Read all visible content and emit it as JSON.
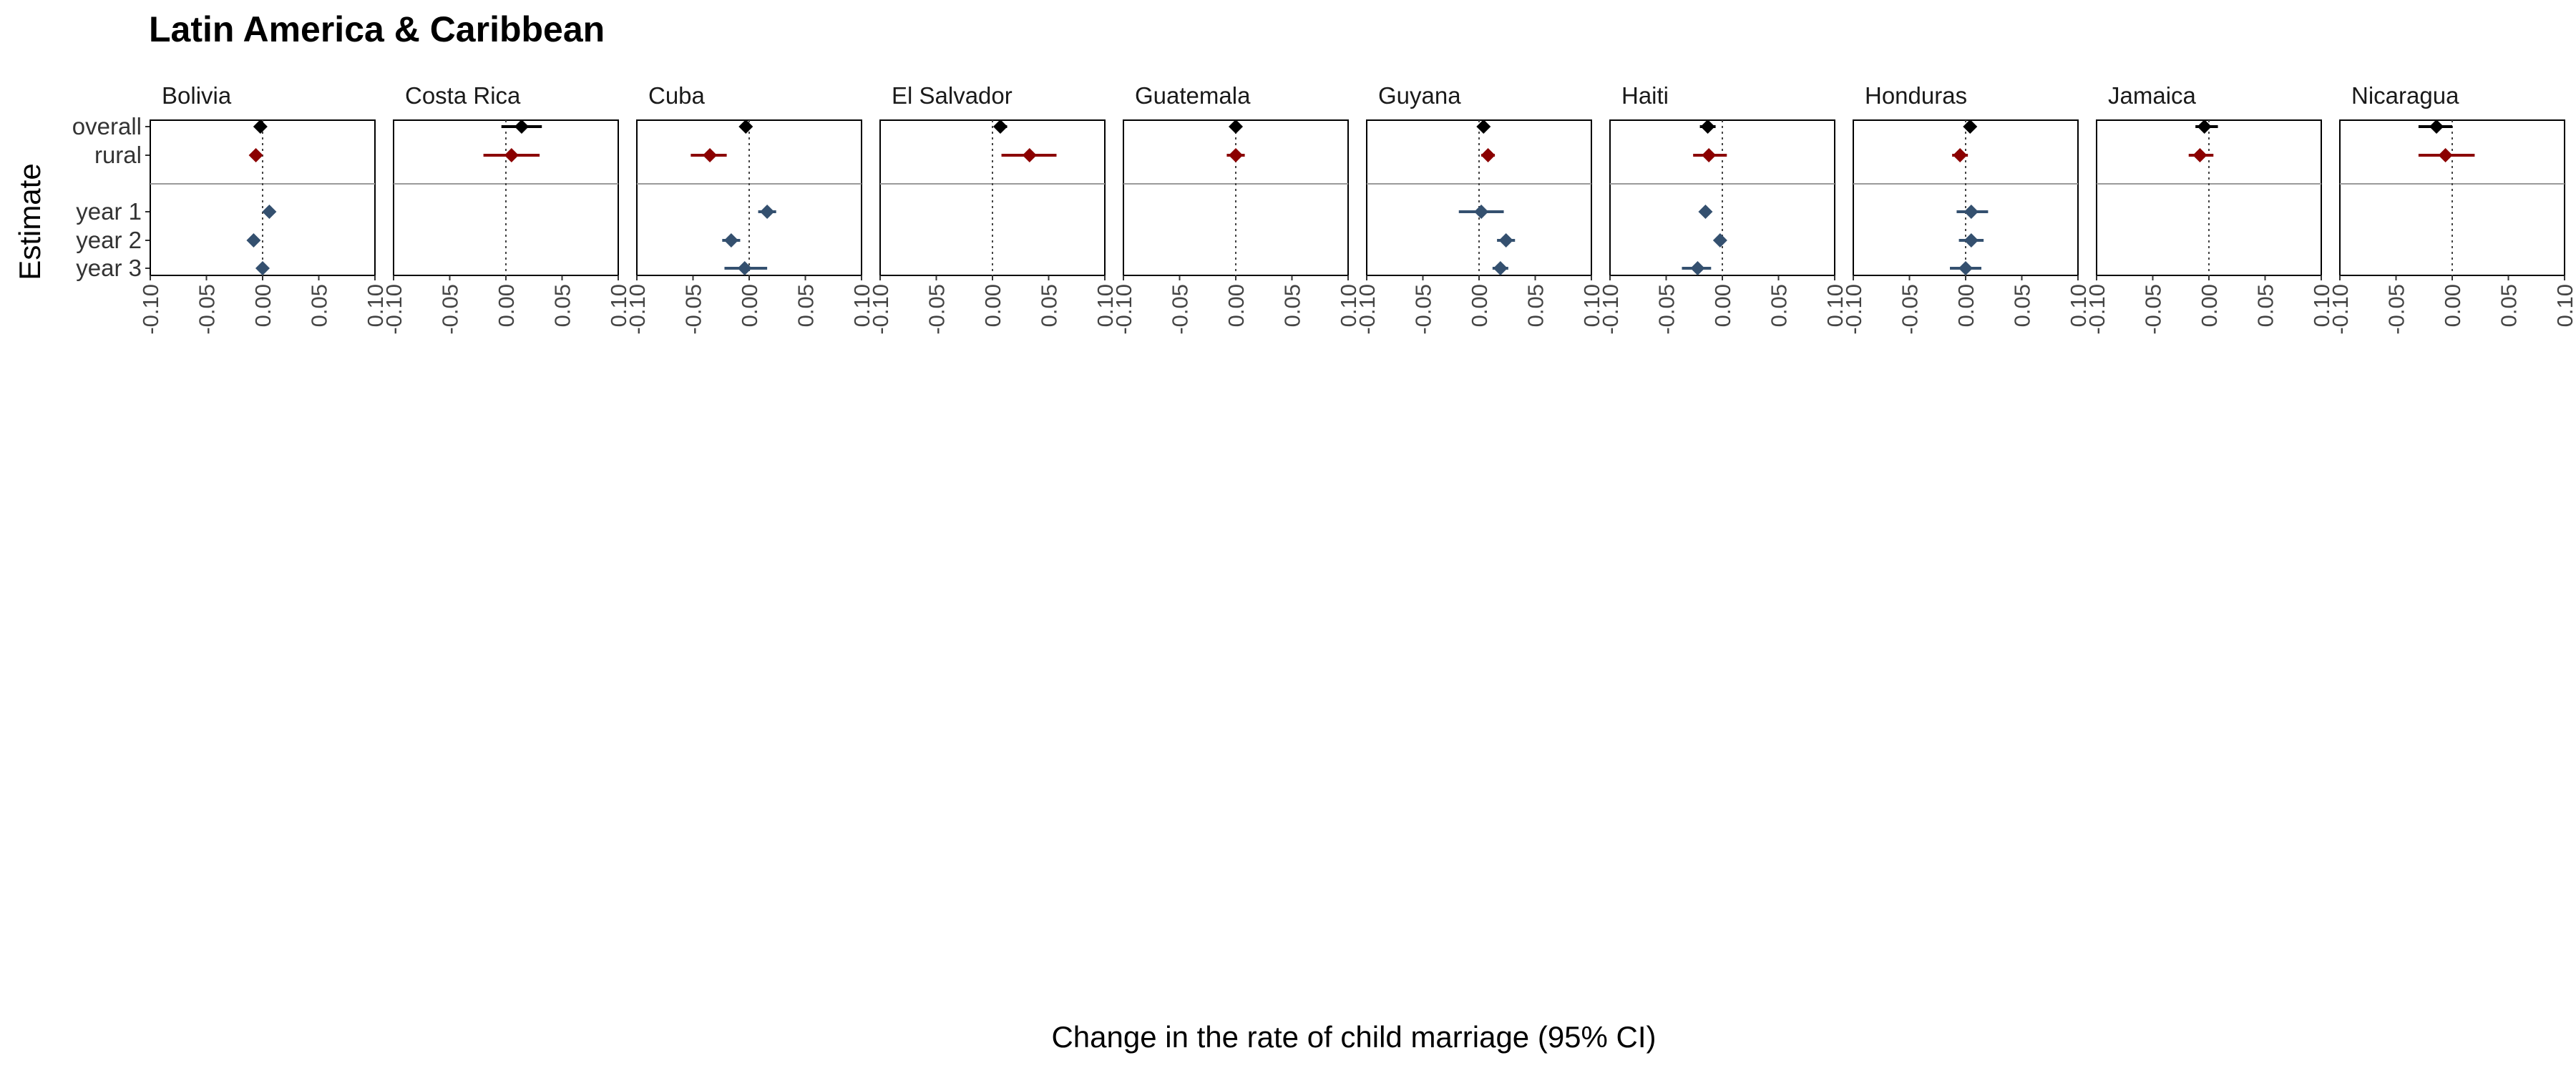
{
  "chart_data": {
    "type": "scatter",
    "title": "Latin America & Caribbean",
    "xlabel": "Change in the rate of child marriage (95% CI)",
    "ylabel": "Estimate",
    "xlim": [
      -0.1,
      0.1
    ],
    "x_ticks": [
      -0.1,
      -0.05,
      0.0,
      0.05,
      0.1
    ],
    "x_tick_labels": [
      "-0.10",
      "-0.05",
      "0.00",
      "0.05",
      "0.10"
    ],
    "estimates": [
      "overall",
      "rural",
      "year 1",
      "year 2",
      "year 3"
    ],
    "colors": {
      "overall": "#000000",
      "rural": "#8b0000",
      "year": "#34506f"
    },
    "panels": [
      {
        "name": "Bolivia",
        "points": [
          {
            "estimate": "overall",
            "x": -0.002,
            "lo": -0.004,
            "hi": 0.0
          },
          {
            "estimate": "rural",
            "x": -0.006,
            "lo": -0.01,
            "hi": -0.002
          },
          {
            "estimate": "year 1",
            "x": 0.006,
            "lo": 0.003,
            "hi": 0.009
          },
          {
            "estimate": "year 2",
            "x": -0.008,
            "lo": -0.011,
            "hi": -0.005
          },
          {
            "estimate": "year 3",
            "x": 0.0,
            "lo": -0.003,
            "hi": 0.003
          }
        ]
      },
      {
        "name": "Costa Rica",
        "points": [
          {
            "estimate": "overall",
            "x": 0.014,
            "lo": -0.004,
            "hi": 0.032
          },
          {
            "estimate": "rural",
            "x": 0.005,
            "lo": -0.02,
            "hi": 0.03
          }
        ]
      },
      {
        "name": "Cuba",
        "points": [
          {
            "estimate": "overall",
            "x": -0.003,
            "lo": -0.008,
            "hi": 0.002
          },
          {
            "estimate": "rural",
            "x": -0.035,
            "lo": -0.052,
            "hi": -0.02
          },
          {
            "estimate": "year 1",
            "x": 0.016,
            "lo": 0.008,
            "hi": 0.024
          },
          {
            "estimate": "year 2",
            "x": -0.016,
            "lo": -0.024,
            "hi": -0.008
          },
          {
            "estimate": "year 3",
            "x": -0.004,
            "lo": -0.022,
            "hi": 0.016
          }
        ]
      },
      {
        "name": "El Salvador",
        "points": [
          {
            "estimate": "overall",
            "x": 0.007,
            "lo": 0.002,
            "hi": 0.013
          },
          {
            "estimate": "rural",
            "x": 0.033,
            "lo": 0.008,
            "hi": 0.057
          }
        ]
      },
      {
        "name": "Guatemala",
        "points": [
          {
            "estimate": "overall",
            "x": 0.0,
            "lo": -0.004,
            "hi": 0.004
          },
          {
            "estimate": "rural",
            "x": 0.0,
            "lo": -0.008,
            "hi": 0.008
          }
        ]
      },
      {
        "name": "Guyana",
        "points": [
          {
            "estimate": "overall",
            "x": 0.004,
            "lo": 0.0,
            "hi": 0.008
          },
          {
            "estimate": "rural",
            "x": 0.008,
            "lo": 0.002,
            "hi": 0.014
          },
          {
            "estimate": "year 1",
            "x": 0.002,
            "lo": -0.018,
            "hi": 0.022
          },
          {
            "estimate": "year 2",
            "x": 0.024,
            "lo": 0.016,
            "hi": 0.032
          },
          {
            "estimate": "year 3",
            "x": 0.019,
            "lo": 0.012,
            "hi": 0.026
          }
        ]
      },
      {
        "name": "Haiti",
        "points": [
          {
            "estimate": "overall",
            "x": -0.013,
            "lo": -0.02,
            "hi": -0.006
          },
          {
            "estimate": "rural",
            "x": -0.012,
            "lo": -0.026,
            "hi": 0.004
          },
          {
            "estimate": "year 1",
            "x": -0.015,
            "lo": -0.019,
            "hi": -0.011
          },
          {
            "estimate": "year 2",
            "x": -0.002,
            "lo": -0.006,
            "hi": 0.002
          },
          {
            "estimate": "year 3",
            "x": -0.022,
            "lo": -0.036,
            "hi": -0.01
          }
        ]
      },
      {
        "name": "Honduras",
        "points": [
          {
            "estimate": "overall",
            "x": 0.004,
            "lo": 0.0,
            "hi": 0.008
          },
          {
            "estimate": "rural",
            "x": -0.005,
            "lo": -0.012,
            "hi": 0.002
          },
          {
            "estimate": "year 1",
            "x": 0.005,
            "lo": -0.008,
            "hi": 0.02
          },
          {
            "estimate": "year 2",
            "x": 0.005,
            "lo": -0.006,
            "hi": 0.016
          },
          {
            "estimate": "year 3",
            "x": 0.0,
            "lo": -0.014,
            "hi": 0.014
          }
        ]
      },
      {
        "name": "Jamaica",
        "points": [
          {
            "estimate": "overall",
            "x": -0.004,
            "lo": -0.012,
            "hi": 0.008
          },
          {
            "estimate": "rural",
            "x": -0.008,
            "lo": -0.018,
            "hi": 0.004
          }
        ]
      },
      {
        "name": "Nicaragua",
        "points": [
          {
            "estimate": "overall",
            "x": -0.014,
            "lo": -0.03,
            "hi": 0.0
          },
          {
            "estimate": "rural",
            "x": -0.006,
            "lo": -0.03,
            "hi": 0.02
          }
        ]
      }
    ],
    "grid": false,
    "legend": "none"
  }
}
